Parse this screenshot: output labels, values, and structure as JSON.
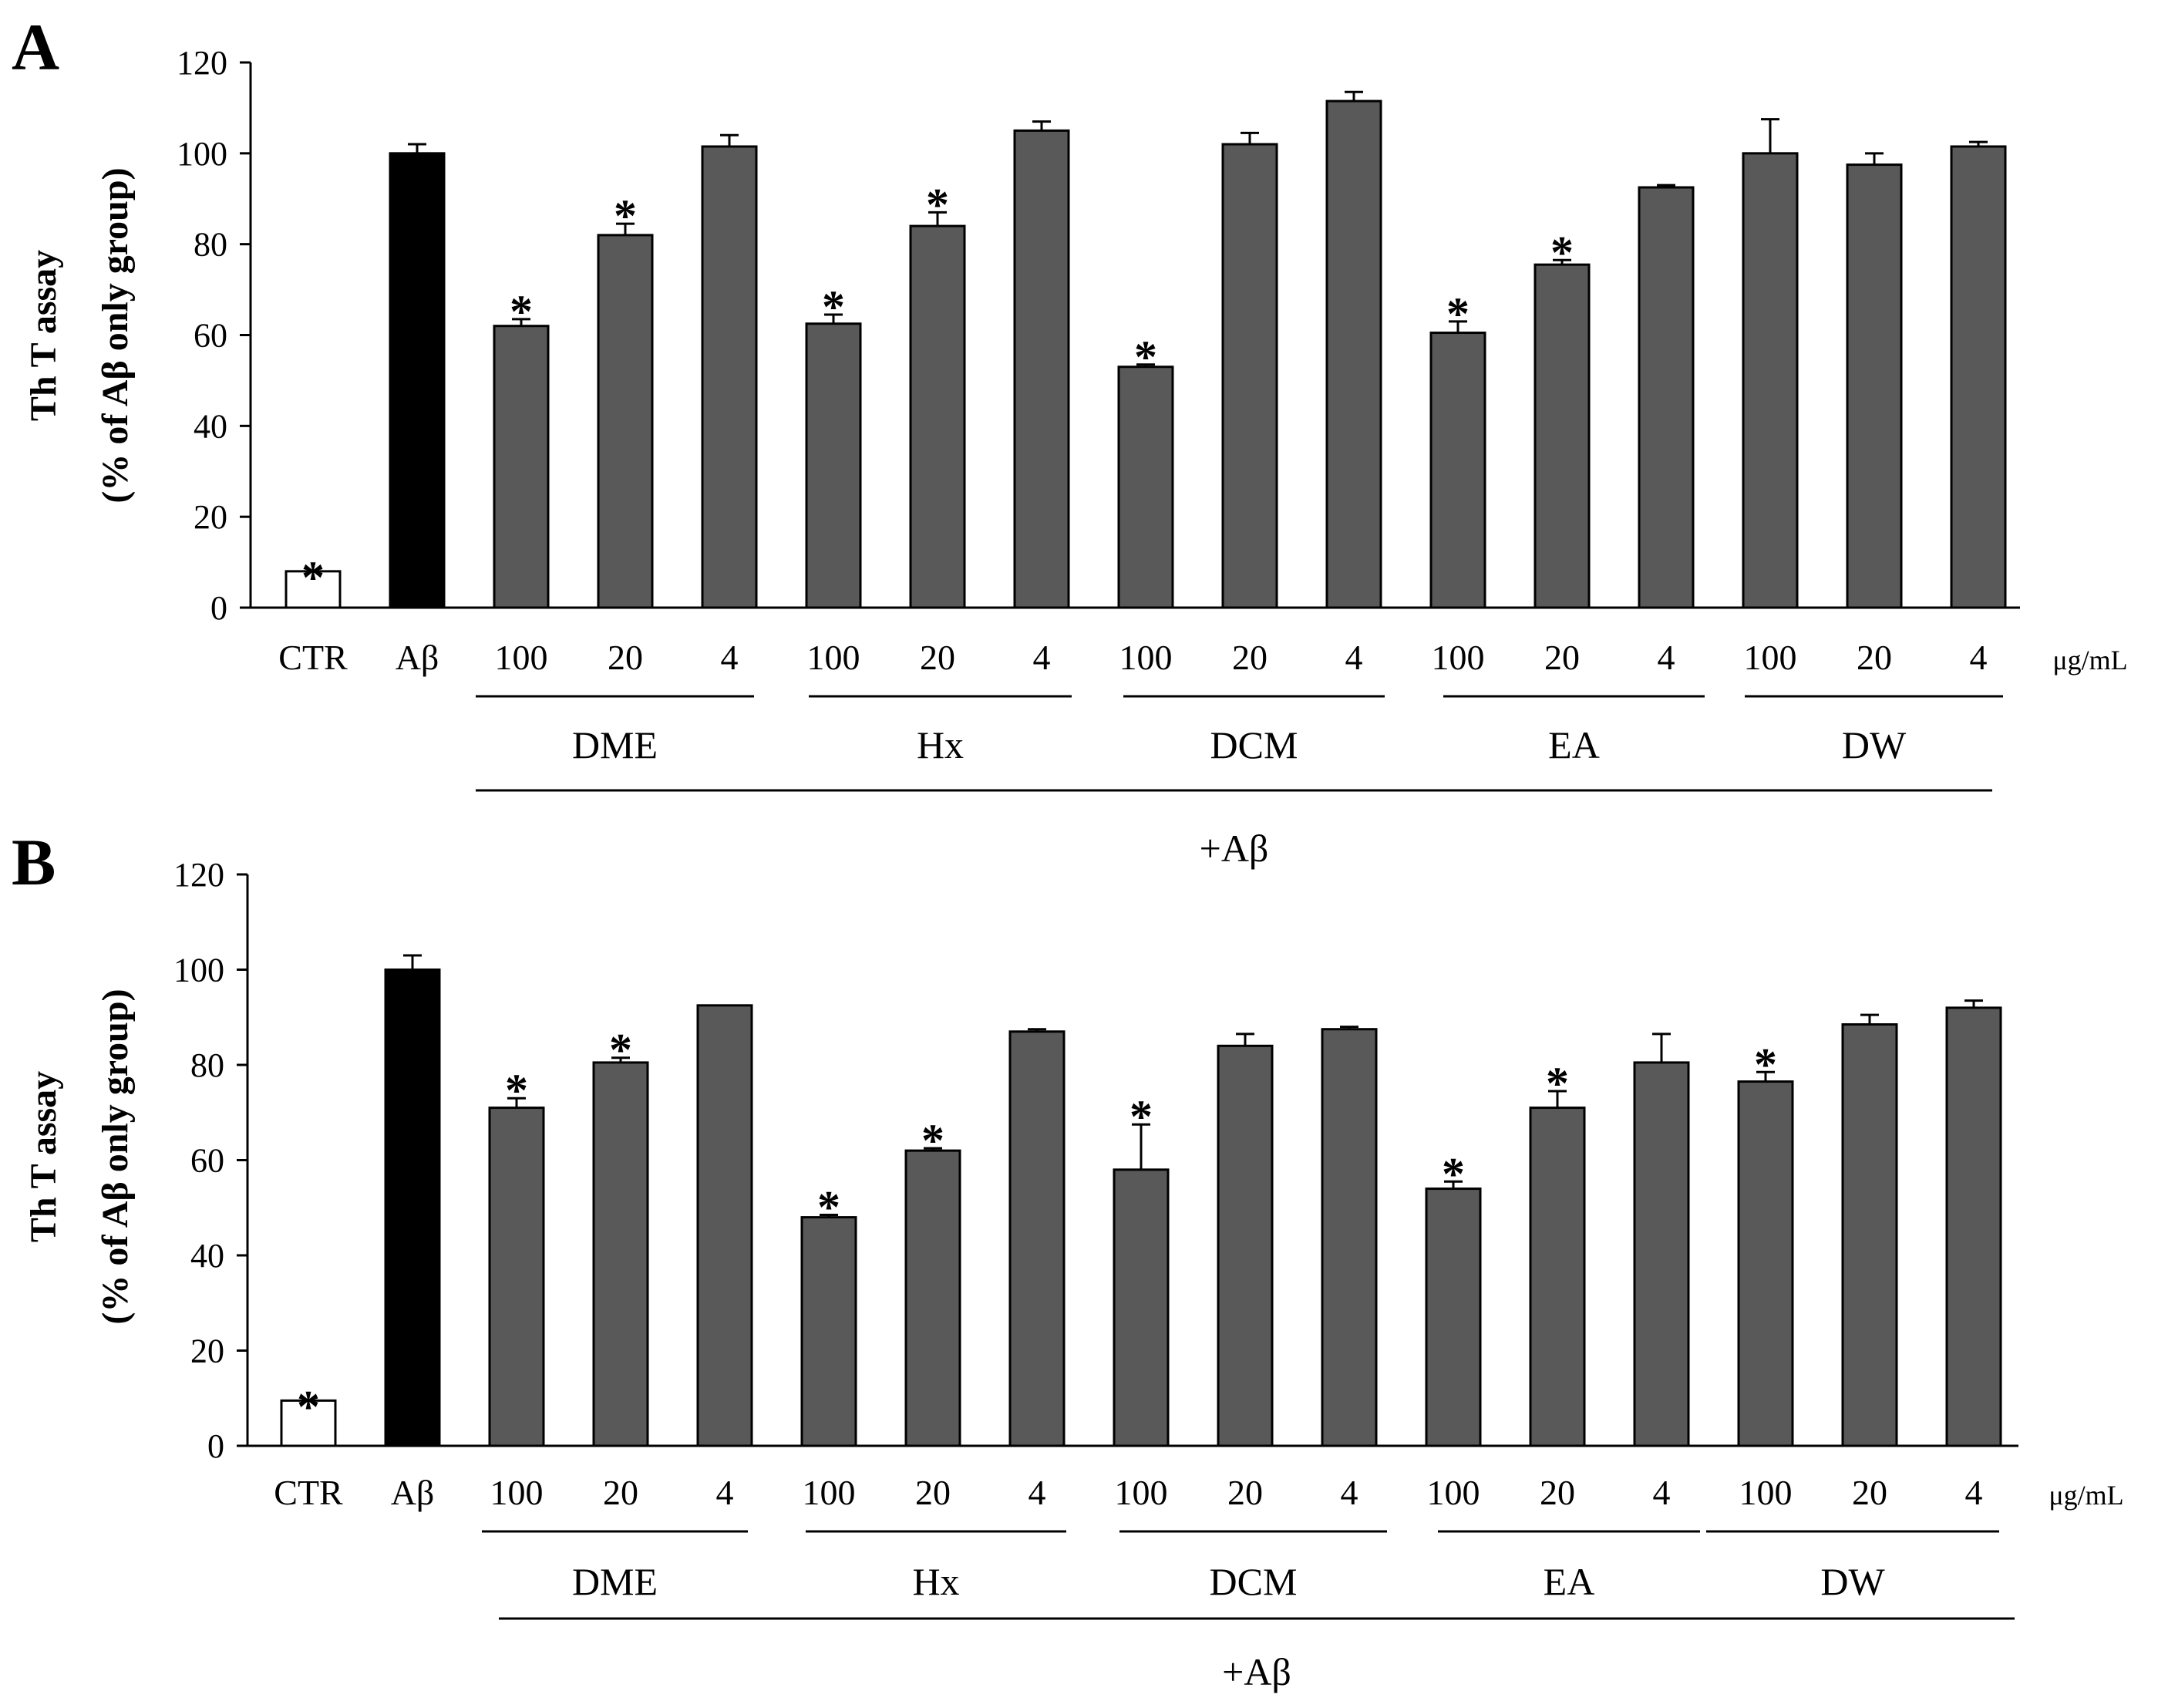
{
  "chart_data": [
    {
      "type": "bar",
      "panel": "A",
      "ylabel_line1": "Th T assay",
      "ylabel_line2": "(% of Aβ only group)",
      "ylim": [
        0,
        120
      ],
      "yticks": [
        0,
        20,
        40,
        60,
        80,
        100,
        120
      ],
      "unit_label": "μg/mL",
      "treatment_label": "+Aβ",
      "categories": [
        "CTR",
        "Aβ",
        "100",
        "20",
        "4",
        "100",
        "20",
        "4",
        "100",
        "20",
        "4",
        "100",
        "20",
        "4",
        "100",
        "20",
        "4"
      ],
      "groups": [
        "DME",
        "Hx",
        "DCM",
        "EA",
        "DW"
      ],
      "values": [
        8,
        100,
        62,
        82,
        101.5,
        62.5,
        84,
        105,
        53,
        102,
        111.5,
        60.5,
        75.5,
        92.5,
        100,
        97.5,
        101.5
      ],
      "errors": [
        0,
        2,
        1.5,
        2.5,
        2.5,
        2,
        3,
        2,
        0.5,
        2.5,
        2,
        2.5,
        1,
        0.5,
        7.5,
        2.5,
        1
      ],
      "significant": [
        true,
        false,
        true,
        true,
        false,
        true,
        true,
        false,
        true,
        false,
        false,
        true,
        true,
        false,
        false,
        false,
        false
      ],
      "fills": [
        "#ffffff",
        "#000000",
        "#595959",
        "#595959",
        "#595959",
        "#595959",
        "#595959",
        "#595959",
        "#595959",
        "#595959",
        "#595959",
        "#595959",
        "#595959",
        "#595959",
        "#595959",
        "#595959",
        "#595959"
      ]
    },
    {
      "type": "bar",
      "panel": "B",
      "ylabel_line1": "Th T assay",
      "ylabel_line2": "(% of Aβ only group)",
      "ylim": [
        0,
        120
      ],
      "yticks": [
        0,
        20,
        40,
        60,
        80,
        100,
        120
      ],
      "unit_label": "μg/mL",
      "treatment_label": "+Aβ",
      "categories": [
        "CTR",
        "Aβ",
        "100",
        "20",
        "4",
        "100",
        "20",
        "4",
        "100",
        "20",
        "4",
        "100",
        "20",
        "4",
        "100",
        "20",
        "4"
      ],
      "groups": [
        "DME",
        "Hx",
        "DCM",
        "EA",
        "DW"
      ],
      "values": [
        9.5,
        100,
        71,
        80.5,
        92.5,
        48,
        62,
        87,
        58,
        84,
        87.5,
        54,
        71,
        80.5,
        76.5,
        88.5,
        92
      ],
      "errors": [
        0,
        3,
        2,
        1,
        0,
        0.5,
        0.5,
        0.5,
        9.5,
        2.5,
        0.5,
        1.5,
        3.5,
        6,
        2,
        2,
        1.5
      ],
      "significant": [
        true,
        false,
        true,
        true,
        false,
        true,
        true,
        false,
        true,
        false,
        false,
        true,
        true,
        false,
        true,
        false,
        false
      ],
      "fills": [
        "#ffffff",
        "#000000",
        "#595959",
        "#595959",
        "#595959",
        "#595959",
        "#595959",
        "#595959",
        "#595959",
        "#595959",
        "#595959",
        "#595959",
        "#595959",
        "#595959",
        "#595959",
        "#595959",
        "#595959"
      ]
    }
  ]
}
